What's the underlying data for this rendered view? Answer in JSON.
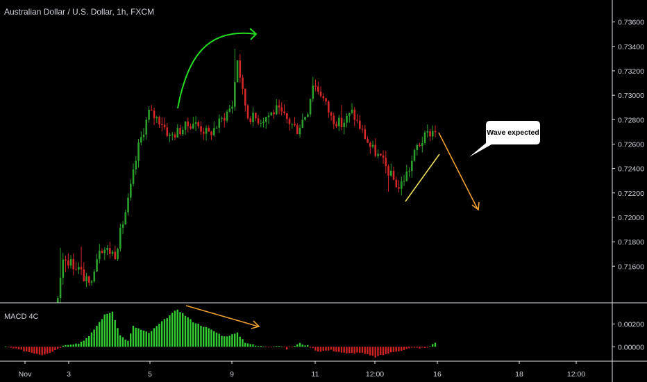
{
  "header": {
    "symbol_title": "Australian Dollar / U.S. Dollar, 1h, FXCM"
  },
  "annotation": {
    "callout_text": "Wave expected"
  },
  "indicator": {
    "name": "MACD 4C"
  },
  "colors": {
    "background": "#000000",
    "up_candle": "#2ca02c",
    "down_candle": "#d62728",
    "histogram_up": "#33cc33",
    "histogram_down": "#cc2222",
    "arrow_green": "#22dd22",
    "arrow_orange": "#f0a030",
    "trendline_yellow": "#f0e060",
    "axis_text": "#d1d4dc",
    "callout_bg": "#ffffff",
    "callout_text": "#000000"
  },
  "chart_data": [
    {
      "type": "candlestick",
      "title": "Australian Dollar / U.S. Dollar, 1h, FXCM",
      "y_ticks": [
        "0.73600",
        "0.73400",
        "0.73200",
        "0.73000",
        "0.72800",
        "0.72600",
        "0.72400",
        "0.72200",
        "0.72000",
        "0.71800",
        "0.71600"
      ],
      "ylim": [
        0.713,
        0.7378
      ],
      "x_ticks": [
        "Nov",
        "3",
        "5",
        "9",
        "11",
        "12:00",
        "16",
        "18",
        "12:00"
      ],
      "path_points": [
        [
          0,
          0.71
        ],
        [
          18,
          0.7104
        ],
        [
          22,
          0.7168
        ],
        [
          28,
          0.7158
        ],
        [
          32,
          0.7144
        ],
        [
          36,
          0.7176
        ],
        [
          42,
          0.717
        ],
        [
          47,
          0.7213
        ],
        [
          51,
          0.7258
        ],
        [
          55,
          0.7286
        ],
        [
          60,
          0.7278
        ],
        [
          63,
          0.7266
        ],
        [
          68,
          0.7273
        ],
        [
          72,
          0.7278
        ],
        [
          78,
          0.7268
        ],
        [
          83,
          0.728
        ],
        [
          87,
          0.7292
        ],
        [
          89,
          0.733
        ],
        [
          91,
          0.7302
        ],
        [
          93,
          0.7283
        ],
        [
          98,
          0.728
        ],
        [
          104,
          0.7288
        ],
        [
          108,
          0.728
        ],
        [
          112,
          0.7272
        ],
        [
          116,
          0.7288
        ],
        [
          118,
          0.731
        ],
        [
          121,
          0.7302
        ],
        [
          125,
          0.7282
        ],
        [
          129,
          0.7276
        ],
        [
          133,
          0.7286
        ],
        [
          137,
          0.727
        ],
        [
          140,
          0.7258
        ],
        [
          144,
          0.7248
        ],
        [
          148,
          0.7234
        ],
        [
          151,
          0.7224
        ],
        [
          155,
          0.724
        ],
        [
          158,
          0.7258
        ],
        [
          162,
          0.7268
        ],
        [
          165,
          0.7272
        ]
      ],
      "spikes": [
        [
          21,
          0.7175
        ],
        [
          23,
          0.7155
        ],
        [
          29,
          0.7176
        ],
        [
          40,
          0.7172
        ],
        [
          88,
          0.7338
        ],
        [
          118,
          0.7315
        ],
        [
          129,
          0.7292
        ],
        [
          147,
          0.7221
        ]
      ],
      "candle_count": 166,
      "annotations": [
        {
          "type": "curved-arrow",
          "color": "green"
        },
        {
          "type": "trendline",
          "color": "yellow"
        },
        {
          "type": "arrow",
          "color": "orange"
        },
        {
          "type": "callout",
          "text": "Wave expected"
        }
      ]
    },
    {
      "type": "histogram",
      "title": "MACD 4C",
      "y_ticks": [
        "0.00200",
        "0.00000"
      ],
      "ylim": [
        -0.0012,
        0.0038
      ],
      "bar_count": 166,
      "values_keypoints": [
        [
          0,
          0.0
        ],
        [
          4,
          -0.0002
        ],
        [
          14,
          -0.0007
        ],
        [
          18,
          -0.0004
        ],
        [
          23,
          0.0002
        ],
        [
          28,
          0.0003
        ],
        [
          32,
          0.0009
        ],
        [
          38,
          0.0028
        ],
        [
          41,
          0.0031
        ],
        [
          44,
          0.001
        ],
        [
          47,
          0.0005
        ],
        [
          49,
          0.0018
        ],
        [
          53,
          0.0014
        ],
        [
          55,
          0.0012
        ],
        [
          60,
          0.0022
        ],
        [
          66,
          0.0033
        ],
        [
          72,
          0.0022
        ],
        [
          78,
          0.0016
        ],
        [
          84,
          0.0009
        ],
        [
          89,
          0.0012
        ],
        [
          92,
          0.0004
        ],
        [
          96,
          0.0001
        ],
        [
          100,
          0.0
        ],
        [
          105,
          0.0001
        ],
        [
          108,
          -0.0002
        ],
        [
          113,
          0.0003
        ],
        [
          116,
          0.0001
        ],
        [
          120,
          -0.0004
        ],
        [
          125,
          -0.0003
        ],
        [
          131,
          -0.0006
        ],
        [
          136,
          -0.0005
        ],
        [
          142,
          -0.0009
        ],
        [
          150,
          -0.0004
        ],
        [
          156,
          -0.0001
        ],
        [
          162,
          -0.0001
        ],
        [
          165,
          0.0004
        ]
      ]
    }
  ]
}
